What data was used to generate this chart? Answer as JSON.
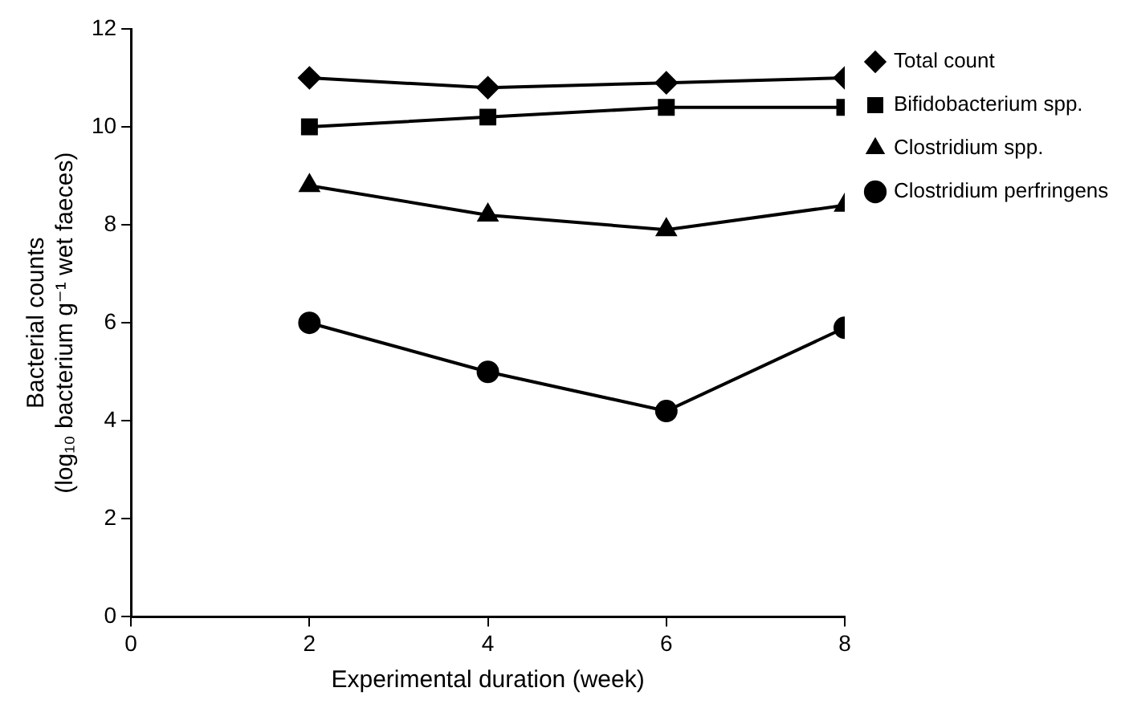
{
  "chart_data": {
    "type": "line",
    "xlabel": "Experimental duration (week)",
    "ylabel": "Bacterial counts\n(log₁₀ bacterium g⁻¹ wet faeces)",
    "x": [
      2,
      4,
      6,
      8
    ],
    "series": [
      {
        "name": "Total count",
        "color": "#000000",
        "marker": "diamond",
        "values": [
          11,
          10.8,
          10.9,
          11
        ]
      },
      {
        "name": "Bifidobacterium spp.",
        "color": "#000000",
        "marker": "square",
        "values": [
          10,
          10.2,
          10.4,
          10.4
        ]
      },
      {
        "name": "Clostridium spp.",
        "color": "#000000",
        "marker": "triangle",
        "values": [
          8.8,
          8.2,
          7.9,
          8.4
        ]
      },
      {
        "name": "Clostridium perfringens",
        "color": "#000000",
        "marker": "circle",
        "values": [
          6,
          5,
          4.2,
          5.9
        ]
      }
    ],
    "xlim": [
      0,
      8
    ],
    "xticks": [
      0,
      2,
      4,
      6,
      8
    ],
    "ylim": [
      0,
      12
    ],
    "yticks": [
      0,
      2,
      4,
      6,
      8,
      10,
      12
    ],
    "grid": false,
    "legend": "right",
    "line_style": "solid"
  }
}
